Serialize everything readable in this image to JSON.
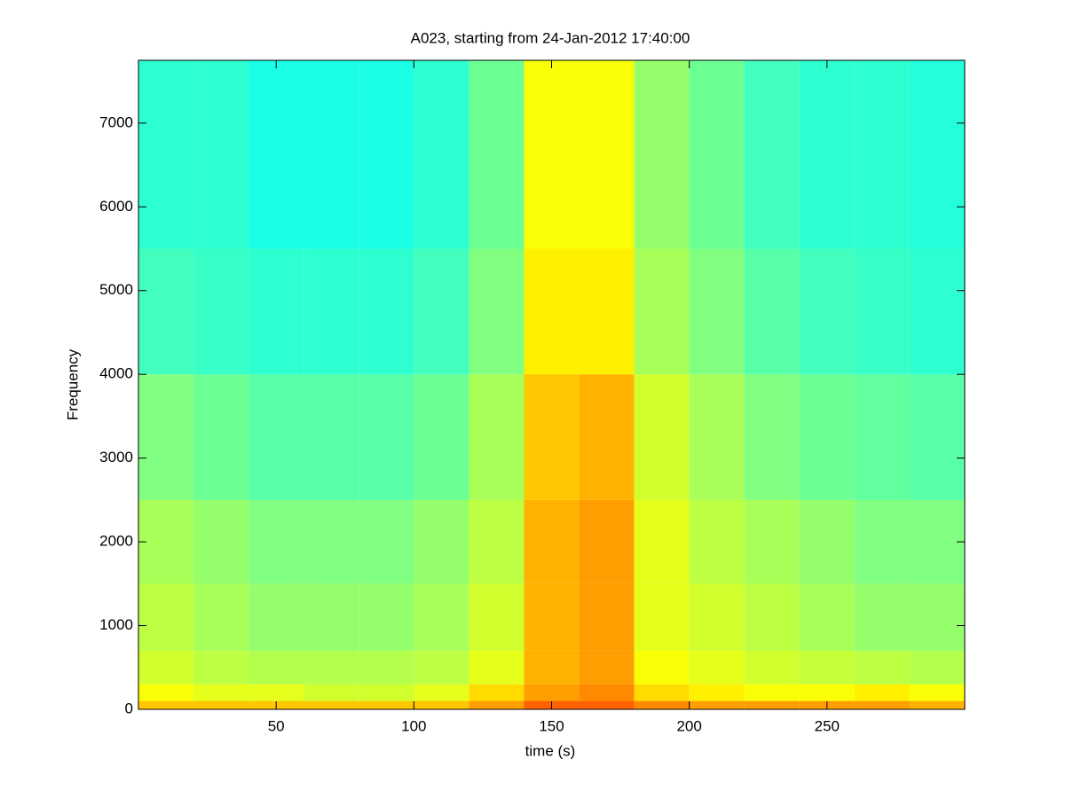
{
  "chart_data": {
    "type": "heatmap",
    "title": "A023, starting from 24-Jan-2012 17:40:00",
    "xlabel": "time (s)",
    "ylabel": "Frequency",
    "xlim": [
      0,
      300
    ],
    "ylim": [
      0,
      7750
    ],
    "xticks": [
      50,
      100,
      150,
      200,
      250
    ],
    "yticks": [
      0,
      1000,
      2000,
      3000,
      4000,
      5000,
      6000,
      7000
    ],
    "colormap": "jet",
    "clim": [
      0,
      1
    ],
    "x_edges": [
      0,
      20,
      40,
      60,
      80,
      100,
      120,
      140,
      160,
      180,
      200,
      220,
      240,
      260,
      280,
      300
    ],
    "y_edges": [
      0,
      100,
      300,
      700,
      1500,
      2500,
      4000,
      5500,
      7750
    ],
    "z": [
      [
        0.68,
        0.68,
        0.68,
        0.68,
        0.68,
        0.68,
        0.72,
        0.78,
        0.78,
        0.74,
        0.72,
        0.72,
        0.72,
        0.72,
        0.7
      ],
      [
        0.62,
        0.6,
        0.6,
        0.58,
        0.58,
        0.6,
        0.66,
        0.72,
        0.74,
        0.66,
        0.64,
        0.62,
        0.62,
        0.64,
        0.62
      ],
      [
        0.58,
        0.56,
        0.55,
        0.55,
        0.55,
        0.56,
        0.6,
        0.7,
        0.72,
        0.62,
        0.6,
        0.58,
        0.57,
        0.56,
        0.55
      ],
      [
        0.56,
        0.54,
        0.52,
        0.52,
        0.52,
        0.54,
        0.58,
        0.7,
        0.72,
        0.6,
        0.58,
        0.56,
        0.54,
        0.52,
        0.52
      ],
      [
        0.54,
        0.52,
        0.5,
        0.5,
        0.5,
        0.52,
        0.56,
        0.7,
        0.72,
        0.6,
        0.56,
        0.54,
        0.52,
        0.5,
        0.5
      ],
      [
        0.5,
        0.48,
        0.46,
        0.46,
        0.46,
        0.48,
        0.54,
        0.68,
        0.7,
        0.58,
        0.54,
        0.5,
        0.48,
        0.47,
        0.46
      ],
      [
        0.44,
        0.43,
        0.42,
        0.42,
        0.42,
        0.44,
        0.5,
        0.64,
        0.64,
        0.54,
        0.5,
        0.46,
        0.44,
        0.43,
        0.42
      ],
      [
        0.42,
        0.42,
        0.4,
        0.4,
        0.4,
        0.42,
        0.48,
        0.62,
        0.62,
        0.52,
        0.48,
        0.44,
        0.42,
        0.42,
        0.41
      ]
    ]
  }
}
